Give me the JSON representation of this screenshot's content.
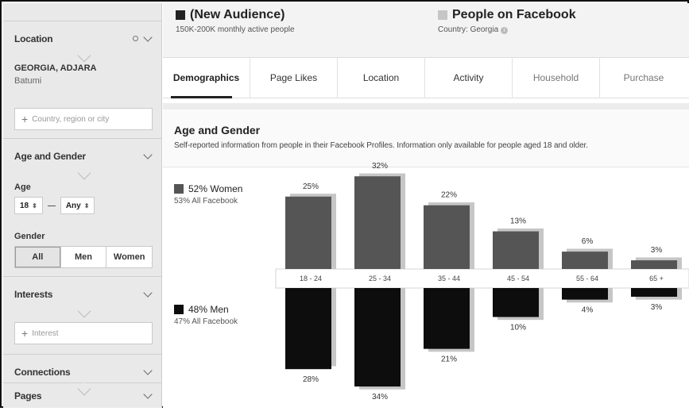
{
  "sidebar": {
    "location_header": "Location",
    "location_value": "GEORGIA, ADJARA",
    "location_sub": "Batumi",
    "location_placeholder": "Country, region or city",
    "age_gender_header": "Age and Gender",
    "age_label": "Age",
    "age_min": "18",
    "age_max": "Any",
    "gender_label": "Gender",
    "gender_options": [
      "All",
      "Men",
      "Women"
    ],
    "gender_selected": "All",
    "interests_header": "Interests",
    "interest_placeholder": "Interest",
    "connections_header": "Connections",
    "pages_header": "Pages"
  },
  "header": {
    "audience_title": "(New Audience)",
    "audience_sub": "150K-200K monthly active people",
    "fb_title": "People on Facebook",
    "fb_sub": "Country: Georgia"
  },
  "tabs": [
    {
      "label": "Demographics",
      "active": true
    },
    {
      "label": "Page Likes",
      "active": false
    },
    {
      "label": "Location",
      "active": false
    },
    {
      "label": "Activity",
      "active": false
    },
    {
      "label": "Household",
      "active": false
    },
    {
      "label": "Purchase",
      "active": false
    }
  ],
  "section": {
    "title": "Age and Gender",
    "description": "Self-reported information from people in their Facebook Profiles. Information only available for people aged 18 and older."
  },
  "legend": {
    "women": "52% Women",
    "women_sub": "53% All Facebook",
    "men": "48% Men",
    "men_sub": "47% All Facebook"
  },
  "colors": {
    "women_bar": "#555555",
    "men_bar": "#0d0d0d",
    "facebook_bar": "#c6c6c6",
    "audience_square": "#222222",
    "facebook_square": "#c6c6c6"
  },
  "chart_data": {
    "type": "bar",
    "categories": [
      "18 - 24",
      "25 - 34",
      "35 - 44",
      "45 - 54",
      "55 - 64",
      "65 +"
    ],
    "series": [
      {
        "name": "Women",
        "values": [
          25,
          32,
          22,
          13,
          6,
          3
        ],
        "labels": [
          "25%",
          "32%",
          "22%",
          "13%",
          "6%",
          "3%"
        ]
      },
      {
        "name": "Men",
        "values": [
          28,
          34,
          21,
          10,
          4,
          3
        ],
        "labels": [
          "28%",
          "34%",
          "21%",
          "10%",
          "4%",
          "3%"
        ]
      }
    ],
    "facebook_women": [
      26,
      33,
      23,
      14,
      7,
      4
    ],
    "facebook_men": [
      27,
      35,
      22,
      11,
      5,
      4
    ]
  }
}
